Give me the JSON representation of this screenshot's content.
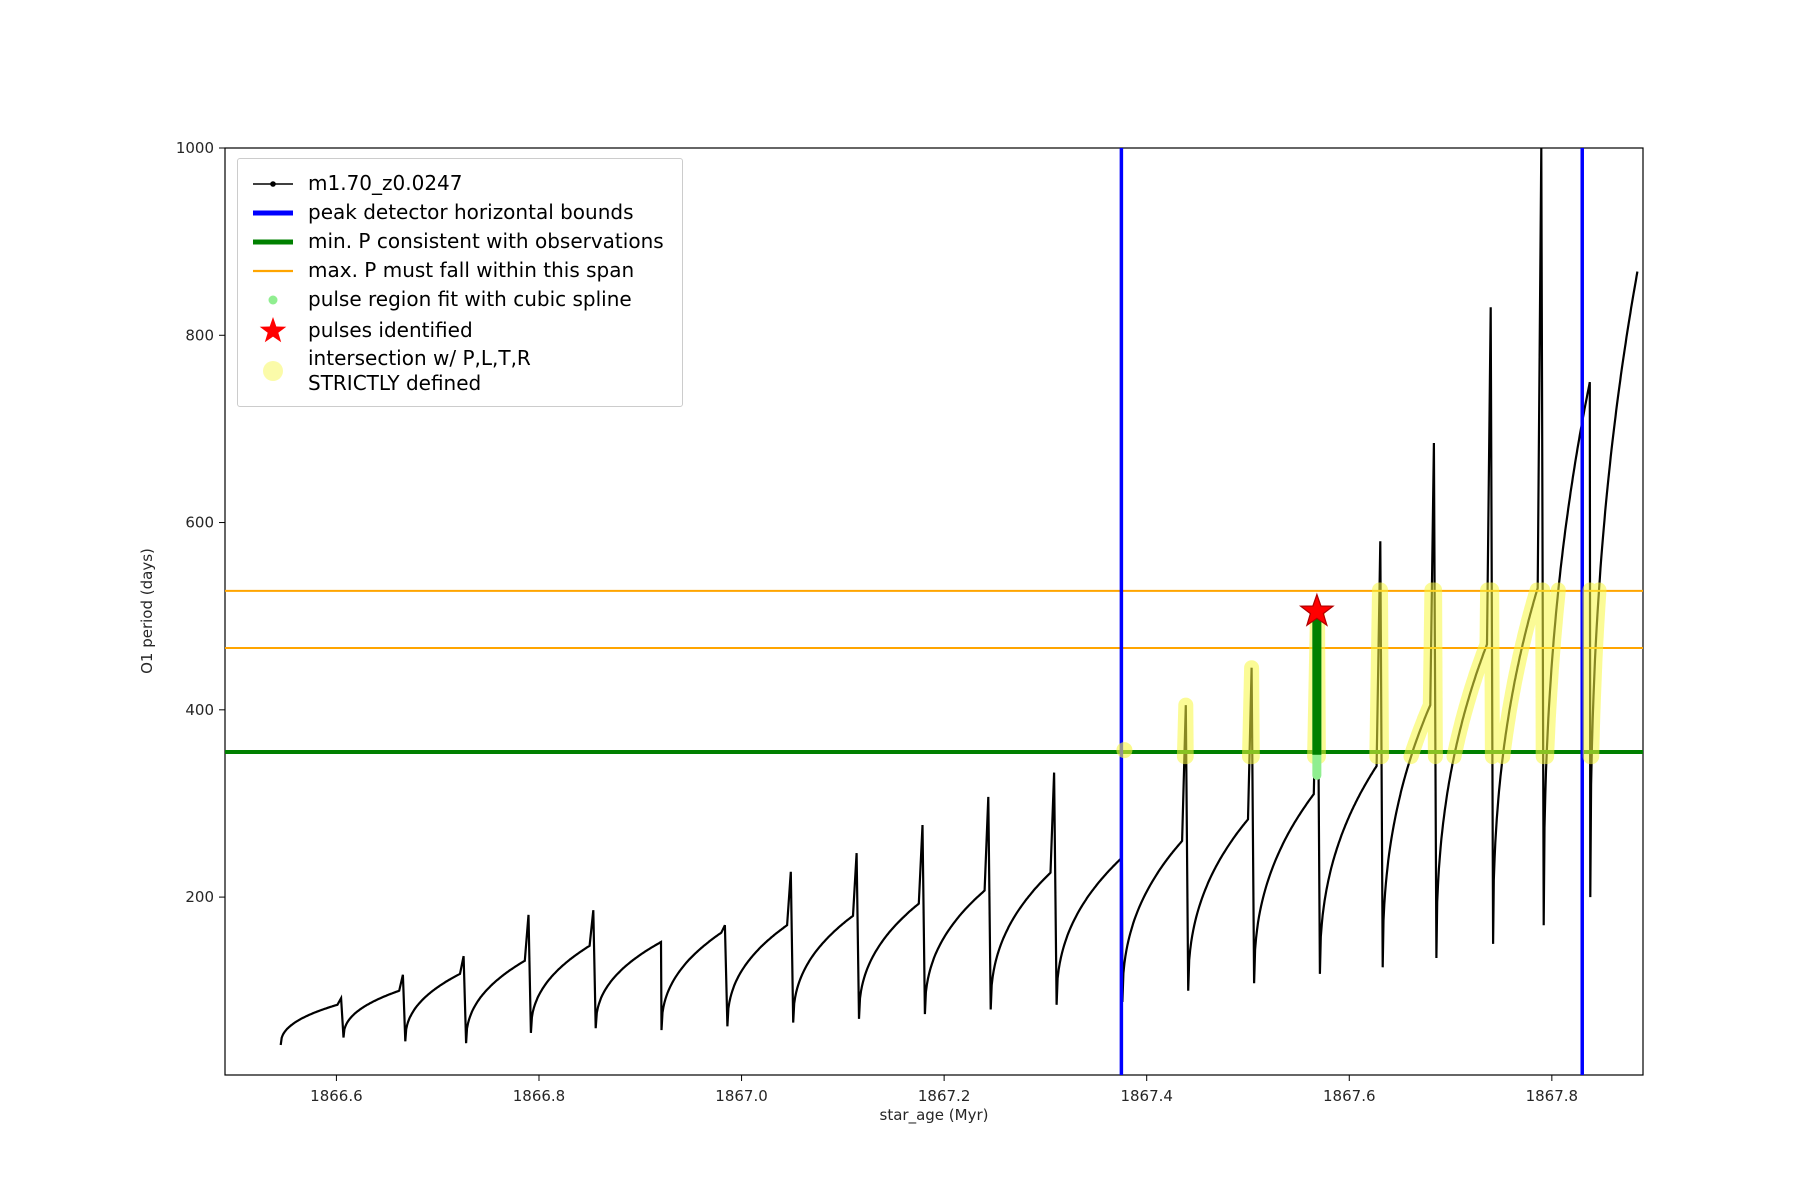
{
  "chart_data": {
    "type": "line",
    "title": "",
    "xlabel": "star_age (Myr)",
    "ylabel": "O1 period (days)",
    "xlim": [
      1866.49,
      1867.89
    ],
    "ylim": [
      10,
      1000
    ],
    "x_ticks": [
      1866.6,
      1866.8,
      1867.0,
      1867.2,
      1867.4,
      1867.6,
      1867.8
    ],
    "y_ticks": [
      200,
      400,
      600,
      800,
      1000
    ],
    "grid": false,
    "legend_position": "upper left",
    "series_name": "m1.70_z0.0247",
    "pulse_cycles": [
      {
        "x0": 1866.545,
        "x1": 1866.607,
        "y_min": 42,
        "y_plateau": 85,
        "y_spike": 92
      },
      {
        "x0": 1866.607,
        "x1": 1866.668,
        "y_min": 50,
        "y_plateau": 100,
        "y_spike": 117
      },
      {
        "x0": 1866.668,
        "x1": 1866.728,
        "y_min": 46,
        "y_plateau": 118,
        "y_spike": 137
      },
      {
        "x0": 1866.728,
        "x1": 1866.792,
        "y_min": 44,
        "y_plateau": 132,
        "y_spike": 181
      },
      {
        "x0": 1866.792,
        "x1": 1866.856,
        "y_min": 55,
        "y_plateau": 148,
        "y_spike": 186
      },
      {
        "x0": 1866.856,
        "x1": 1866.921,
        "y_min": 60,
        "y_plateau": 152,
        "y_spike": 158
      },
      {
        "x0": 1866.921,
        "x1": 1866.986,
        "y_min": 58,
        "y_plateau": 162,
        "y_spike": 170
      },
      {
        "x0": 1866.986,
        "x1": 1867.051,
        "y_min": 62,
        "y_plateau": 170,
        "y_spike": 227
      },
      {
        "x0": 1867.051,
        "x1": 1867.116,
        "y_min": 66,
        "y_plateau": 180,
        "y_spike": 247
      },
      {
        "x0": 1867.116,
        "x1": 1867.181,
        "y_min": 70,
        "y_plateau": 193,
        "y_spike": 277
      },
      {
        "x0": 1867.181,
        "x1": 1867.246,
        "y_min": 75,
        "y_plateau": 207,
        "y_spike": 307
      },
      {
        "x0": 1867.246,
        "x1": 1867.311,
        "y_min": 80,
        "y_plateau": 226,
        "y_spike": 333
      },
      {
        "x0": 1867.311,
        "x1": 1867.376,
        "y_min": 85,
        "y_plateau": 242,
        "y_spike": 248
      },
      {
        "x0": 1867.376,
        "x1": 1867.441,
        "y_min": 88,
        "y_plateau": 260,
        "y_spike": 405
      },
      {
        "x0": 1867.441,
        "x1": 1867.506,
        "y_min": 100,
        "y_plateau": 283,
        "y_spike": 445
      },
      {
        "x0": 1867.506,
        "x1": 1867.571,
        "y_min": 108,
        "y_plateau": 310,
        "y_spike": 505
      },
      {
        "x0": 1867.571,
        "x1": 1867.633,
        "y_min": 118,
        "y_plateau": 340,
        "y_spike": 580
      },
      {
        "x0": 1867.633,
        "x1": 1867.686,
        "y_min": 125,
        "y_plateau": 405,
        "y_spike": 685
      },
      {
        "x0": 1867.686,
        "x1": 1867.742,
        "y_min": 135,
        "y_plateau": 470,
        "y_spike": 830
      },
      {
        "x0": 1867.742,
        "x1": 1867.792,
        "y_min": 150,
        "y_plateau": 530,
        "y_spike": 1000
      },
      {
        "x0": 1867.792,
        "x1": 1867.838,
        "y_min": 170,
        "y_plateau": 750,
        "y_spike": 751
      },
      {
        "x0": 1867.838,
        "x1": 1867.885,
        "y_min": 200,
        "y_plateau": 868,
        "y_spike": 869
      }
    ],
    "peak_detector_bounds_x": [
      1867.375,
      1867.83
    ],
    "min_P_hline_y": 355,
    "max_P_span_y": [
      466,
      527
    ],
    "spline_region": {
      "x": 1867.568,
      "y_bottom": 330,
      "y_top": 505,
      "y_dark_bottom": 352,
      "y_dark_top": 500
    },
    "pulse_identified": {
      "x": 1867.568,
      "y": 505
    },
    "intersection_band_y": [
      350,
      528
    ],
    "intersection_x_start": 1867.365,
    "extra_intersection_dot": {
      "x": 1867.378,
      "y": 357
    }
  },
  "legend": {
    "items": [
      {
        "label": "m1.70_z0.0247",
        "marker": "line-dot",
        "color": "#000000",
        "icon": "series-line-icon"
      },
      {
        "label": "peak detector horizontal bounds",
        "marker": "thick-line",
        "color": "#0000ff",
        "icon": "peak-bounds-line-icon"
      },
      {
        "label": "min. P consistent with observations",
        "marker": "thick-line",
        "color": "#008000",
        "icon": "min-period-line-icon"
      },
      {
        "label": "max. P must fall within this span",
        "marker": "line",
        "color": "#ffa500",
        "icon": "max-period-line-icon"
      },
      {
        "label": "pulse region fit with cubic spline",
        "marker": "dot",
        "color": "#90ee90",
        "icon": "spline-region-dot-icon"
      },
      {
        "label": "pulses identified",
        "marker": "star",
        "color": "#ff0000",
        "icon": "pulse-star-icon"
      },
      {
        "label": "intersection w/ P,L,T,R\nSTRICTLY defined",
        "marker": "bigdot",
        "color": "#f7f740",
        "icon": "intersection-dot-icon"
      }
    ]
  },
  "colors": {
    "curve": "#000000",
    "blue": "#0000ff",
    "green": "#008000",
    "orange": "#ffa500",
    "lightgreen": "#90ee90",
    "red": "#ff0000",
    "yellow": "#f7f740"
  }
}
